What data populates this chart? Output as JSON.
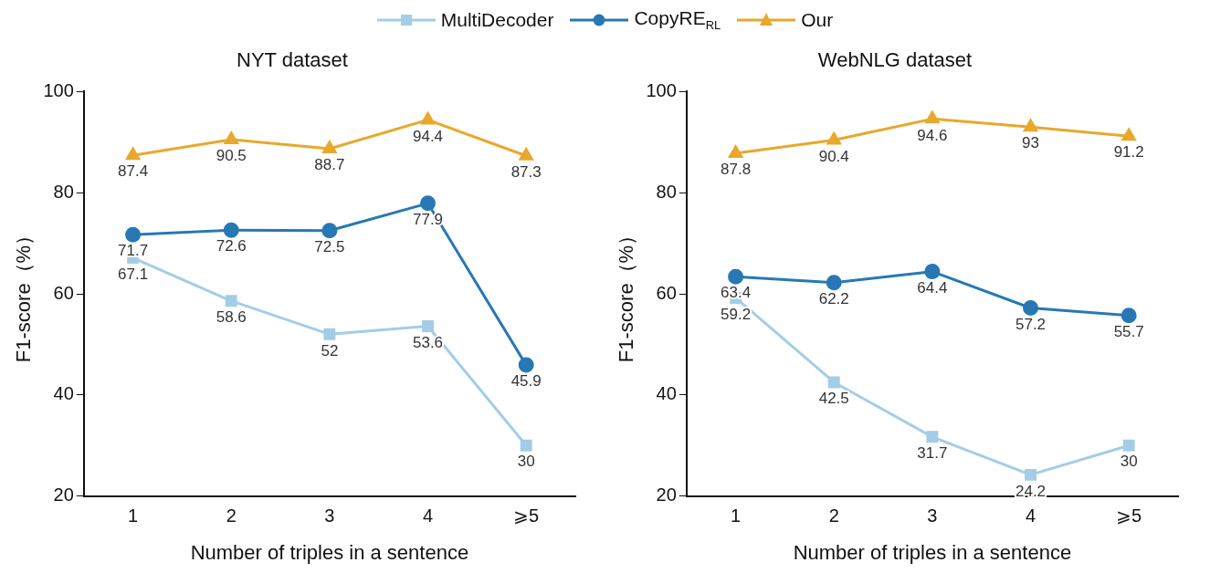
{
  "chart_data": [
    {
      "type": "line",
      "title": "NYT dataset",
      "xlabel": "Number of triples in a sentence",
      "ylabel": "F1-score（%）",
      "categories": [
        "1",
        "2",
        "3",
        "4",
        "⩾5"
      ],
      "ylim": [
        20,
        100
      ],
      "yticks": [
        20,
        40,
        60,
        80,
        100
      ],
      "grid": false,
      "legend": "top",
      "data_labels": true,
      "series": [
        {
          "name": "MultiDecoder",
          "color": "#a3cde6",
          "marker": "square",
          "values": [
            67.1,
            58.6,
            52,
            53.6,
            30
          ]
        },
        {
          "name": "CopyRE$_{RL}$",
          "color": "#2878b5",
          "marker": "circle",
          "values": [
            71.7,
            72.6,
            72.5,
            77.9,
            45.9
          ]
        },
        {
          "name": "Our",
          "color": "#e8a82c",
          "marker": "triangle",
          "values": [
            87.4,
            90.5,
            88.7,
            94.4,
            87.3
          ]
        }
      ]
    },
    {
      "type": "line",
      "title": "WebNLG dataset",
      "xlabel": "Number of triples in a sentence",
      "ylabel": "F1-score（%）",
      "categories": [
        "1",
        "2",
        "3",
        "4",
        "⩾5"
      ],
      "ylim": [
        20,
        100
      ],
      "yticks": [
        20,
        40,
        60,
        80,
        100
      ],
      "grid": false,
      "legend": "top",
      "data_labels": true,
      "series": [
        {
          "name": "MultiDecoder",
          "color": "#a3cde6",
          "marker": "square",
          "values": [
            59.2,
            42.5,
            31.7,
            24.2,
            30
          ]
        },
        {
          "name": "CopyRE$_{RL}$",
          "color": "#2878b5",
          "marker": "circle",
          "values": [
            63.4,
            62.2,
            64.4,
            57.2,
            55.7
          ]
        },
        {
          "name": "Our",
          "color": "#e8a82c",
          "marker": "triangle",
          "values": [
            87.8,
            90.4,
            94.6,
            93,
            91.2
          ]
        }
      ]
    }
  ]
}
